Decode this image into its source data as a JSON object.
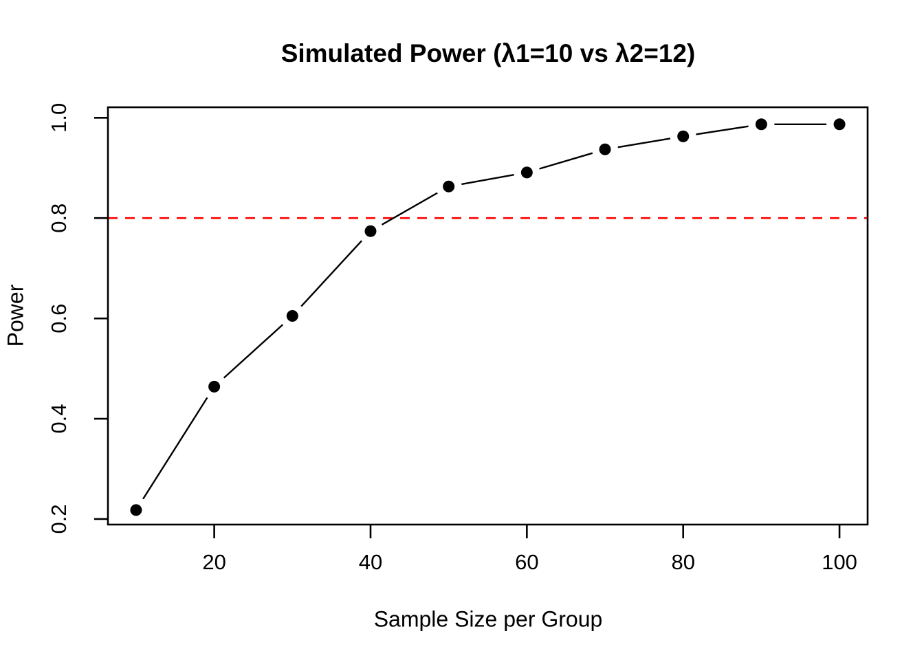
{
  "title": "Simulated Power (λ1=10 vs λ2=12)",
  "chart_data": {
    "type": "line",
    "title": "Simulated Power (λ1=10 vs λ2=12)",
    "xlabel": "Sample Size per Group",
    "ylabel": "Power",
    "x": [
      10,
      20,
      30,
      40,
      50,
      60,
      70,
      80,
      90,
      100
    ],
    "series": [
      {
        "name": "Simulated power",
        "values": [
          0.218,
          0.464,
          0.605,
          0.774,
          0.863,
          0.891,
          0.937,
          0.963,
          0.987,
          0.987
        ]
      }
    ],
    "x_ticks": [
      20,
      40,
      60,
      80,
      100
    ],
    "y_ticks": [
      "0.2",
      "0.4",
      "0.6",
      "0.8",
      "1.0"
    ],
    "xlim": [
      6.4,
      103.6
    ],
    "ylim": [
      0.189,
      1.021
    ],
    "reference_line": {
      "y": 0.8,
      "color": "#FF0000",
      "style": "dashed"
    },
    "line_color": "#000000",
    "point_color": "#000000",
    "marker": "filled-circle",
    "plot_style": "points-and-lines-with-gaps",
    "grid": false,
    "legend": null
  }
}
